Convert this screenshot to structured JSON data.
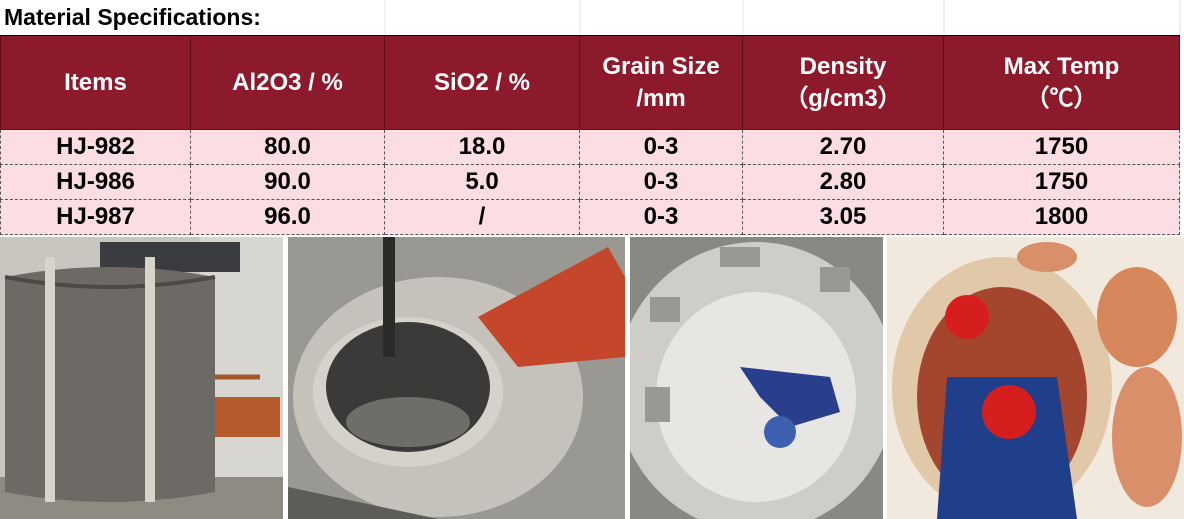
{
  "title": "Material Specifications:",
  "table": {
    "header": [
      [
        "Items"
      ],
      [
        "Al2O3 / %"
      ],
      [
        "SiO2 / %"
      ],
      [
        "Grain Size",
        "/mm"
      ],
      [
        "Density",
        "（g/cm3）"
      ],
      [
        "Max Temp",
        "（℃）"
      ]
    ],
    "rows": [
      [
        "HJ-982",
        "80.0",
        "18.0",
        "0-3",
        "2.70",
        "1750"
      ],
      [
        "HJ-986",
        "90.0",
        "5.0",
        "0-3",
        "2.80",
        "1750"
      ],
      [
        "HJ-987",
        "96.0",
        "/",
        "0-3",
        "3.05",
        "1800"
      ]
    ]
  }
}
